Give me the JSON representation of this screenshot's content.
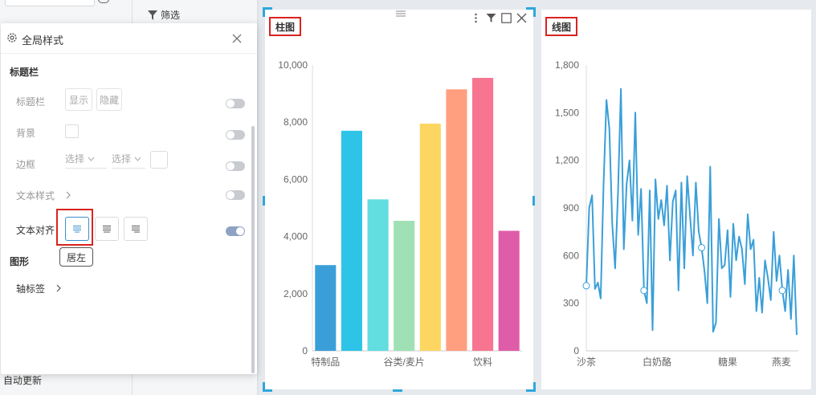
{
  "sidebar": {
    "auto_update": "自动更新"
  },
  "filter_panel": {
    "label": "筛选"
  },
  "style_panel": {
    "title": "全局样式",
    "section_titlebar": "标题栏",
    "row_titlebar": "标题栏",
    "btn_show": "显示",
    "btn_hide": "隐藏",
    "row_background": "背景",
    "row_border": "边框",
    "select_placeholder_1": "选择",
    "select_placeholder_2": "选择",
    "row_text_style": "文本样式",
    "row_text_align": "文本对齐",
    "align_tooltip": "居左",
    "section_graphic": "图形",
    "row_axis_label": "轴标签",
    "toggles": {
      "titlebar": false,
      "background": false,
      "border": false,
      "text_style": false,
      "text_align": true
    }
  },
  "bar_card": {
    "title": "柱图",
    "accent_color": "#2ea7dd"
  },
  "line_card": {
    "title": "线图"
  },
  "chart_data": [
    {
      "type": "bar",
      "title": "柱图",
      "x_tick_labels": [
        "特制品",
        "谷类/麦片",
        "饮料"
      ],
      "values": [
        3000,
        7700,
        5300,
        4550,
        7950,
        9150,
        9550,
        4200
      ],
      "colors": [
        "#3a9fd8",
        "#2ec4e8",
        "#62dde0",
        "#9fe1b5",
        "#fdd661",
        "#ff9f7f",
        "#f77590",
        "#df5ca8"
      ],
      "ylim": [
        0,
        10000
      ],
      "y_ticks": [
        "0",
        "2,000",
        "4,000",
        "6,000",
        "8,000",
        "10,000"
      ],
      "grid": false
    },
    {
      "type": "line",
      "title": "线图",
      "x_tick_labels": [
        "沙茶",
        "白奶酪",
        "糖果",
        "燕麦"
      ],
      "y_ticks": [
        "0",
        "300",
        "600",
        "900",
        "1,200",
        "1,500",
        "1,800"
      ],
      "ylim": [
        0,
        1800
      ],
      "color": "#3a9fd8",
      "values": [
        410,
        900,
        980,
        390,
        430,
        330,
        1050,
        1580,
        1400,
        800,
        520,
        1000,
        1650,
        640,
        1050,
        1200,
        820,
        1500,
        730,
        1020,
        380,
        300,
        1010,
        130,
        1080,
        830,
        950,
        790,
        1040,
        570,
        940,
        1010,
        380,
        1060,
        520,
        1100,
        850,
        600,
        1060,
        750,
        650,
        500,
        300,
        1160,
        120,
        180,
        830,
        520,
        540,
        760,
        340,
        800,
        570,
        720,
        640,
        420,
        860,
        640,
        700,
        250,
        460,
        240,
        570,
        460,
        320,
        750,
        440,
        600,
        380,
        250,
        510,
        200,
        600,
        100
      ],
      "markers": [
        0,
        20,
        40,
        68
      ],
      "grid": false
    }
  ]
}
